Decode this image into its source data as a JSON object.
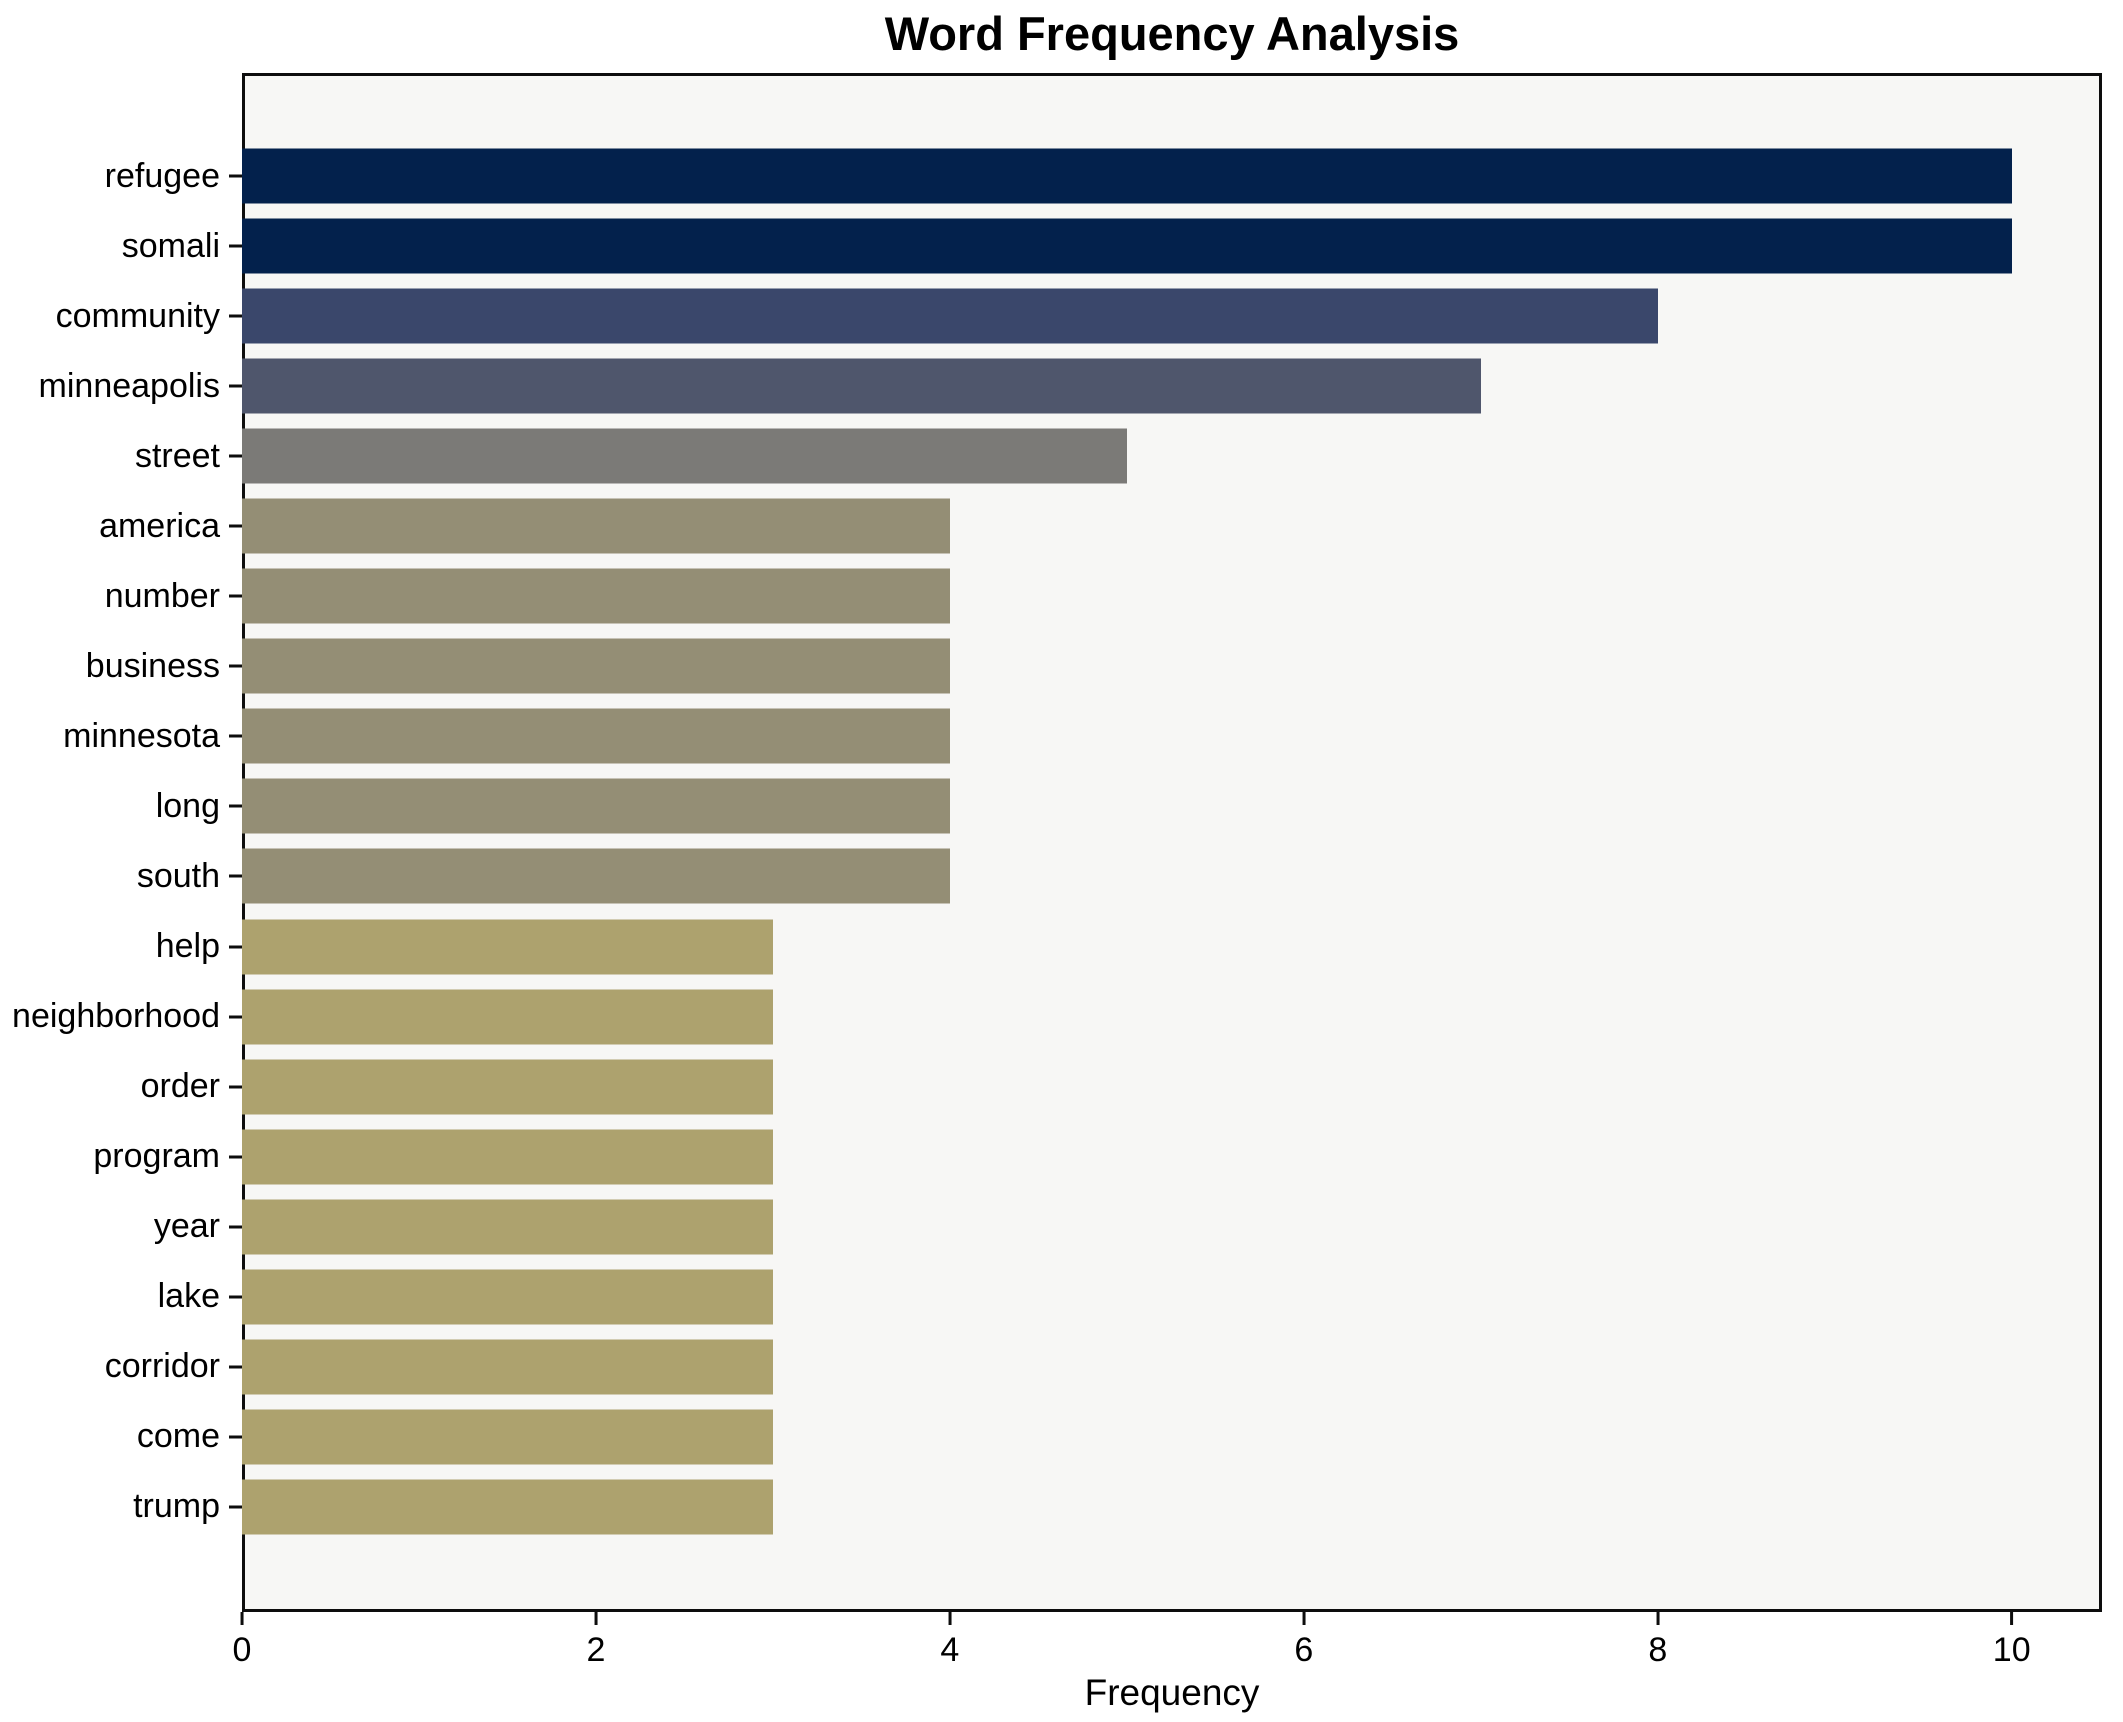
{
  "chart_data": {
    "type": "bar",
    "orientation": "horizontal",
    "title": "Word Frequency Analysis",
    "xlabel": "Frequency",
    "ylabel": "",
    "categories": [
      "refugee",
      "somali",
      "community",
      "minneapolis",
      "street",
      "america",
      "number",
      "business",
      "minnesota",
      "long",
      "south",
      "help",
      "neighborhood",
      "order",
      "program",
      "year",
      "lake",
      "corridor",
      "come",
      "trump"
    ],
    "values": [
      10,
      10,
      8,
      7,
      5,
      4,
      4,
      4,
      4,
      4,
      4,
      3,
      3,
      3,
      3,
      3,
      3,
      3,
      3,
      3
    ],
    "bar_colors": [
      "#03214c",
      "#03214c",
      "#3a476b",
      "#4f566c",
      "#7b7a77",
      "#948e75",
      "#948e75",
      "#948e75",
      "#948e75",
      "#948e75",
      "#948e75",
      "#ada26e",
      "#ada26e",
      "#ada26e",
      "#ada26e",
      "#ada26e",
      "#ada26e",
      "#ada26e",
      "#ada26e",
      "#ada26e"
    ],
    "xlim": [
      0,
      10.51
    ],
    "xticks": [
      0,
      2,
      4,
      6,
      8,
      10
    ],
    "grid": false,
    "legend": null,
    "plot_bg": "#f7f7f5",
    "fig_bg": "#ffffff",
    "text_color": "#000000"
  }
}
